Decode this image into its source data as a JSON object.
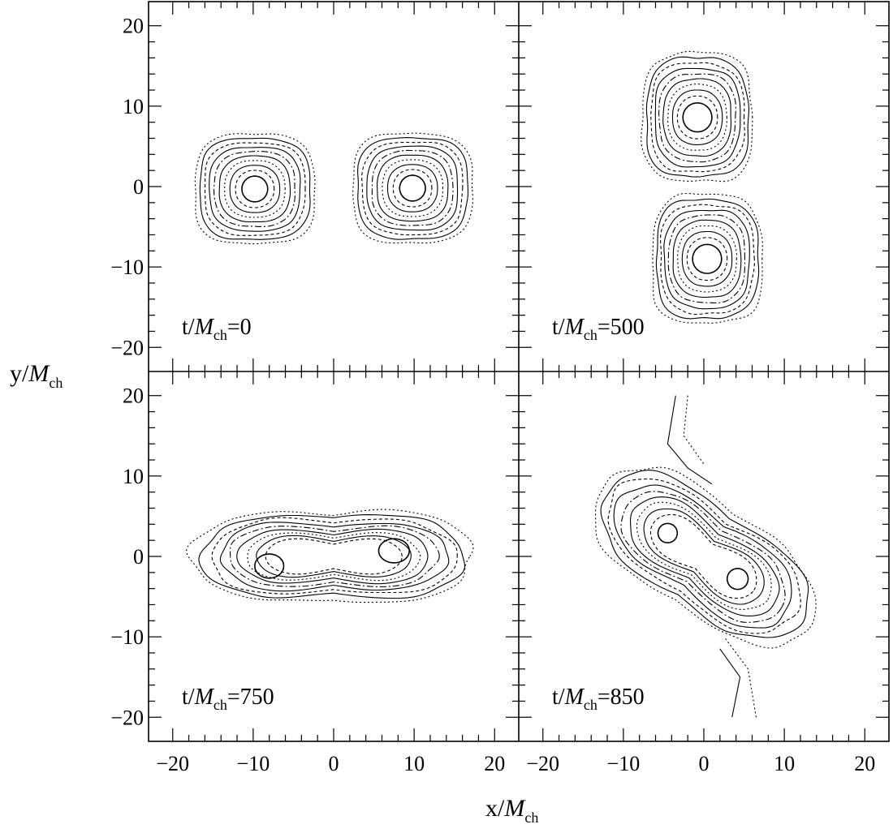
{
  "chart_data": {
    "type": "contour",
    "xlabel": {
      "base": "x/",
      "italic": "M",
      "sub": "ch"
    },
    "ylabel": {
      "base": "y/",
      "italic": "M",
      "sub": "ch"
    },
    "xlim": [
      -23,
      23
    ],
    "ylim": [
      -23,
      23
    ],
    "x_tick_labels": [
      "−20",
      "−10",
      "0",
      "10",
      "20"
    ],
    "y_tick_labels": [
      "20",
      "10",
      "0",
      "−10",
      "−20"
    ],
    "grid": false,
    "panels": [
      {
        "id": "t0",
        "label": {
          "base": "t/",
          "italic": "M",
          "sub": "ch",
          "value": "=0"
        },
        "description": "two separated equal stars",
        "stars": [
          {
            "cx": -9.8,
            "cy": -0.3,
            "core_rx": 1.6,
            "core_ry": 1.6,
            "outer_rx": 7.4,
            "outer_ry": 6.8
          },
          {
            "cx": 9.8,
            "cy": -0.2,
            "core_rx": 1.6,
            "core_ry": 1.6,
            "outer_rx": 7.4,
            "outer_ry": 6.8
          }
        ]
      },
      {
        "id": "t500",
        "label": {
          "base": "t/",
          "italic": "M",
          "sub": "ch",
          "value": "=500"
        },
        "description": "stars tidally elongated, touching",
        "stars": [
          {
            "cx": -0.8,
            "cy": 8.6,
            "core_rx": 1.8,
            "core_ry": 1.8,
            "outer_rx": 6.8,
            "outer_ry": 8.0
          },
          {
            "cx": 0.4,
            "cy": -9.0,
            "core_rx": 1.8,
            "core_ry": 1.8,
            "outer_rx": 6.8,
            "outer_ry": 8.0
          }
        ]
      },
      {
        "id": "t750",
        "label": {
          "base": "t/",
          "italic": "M",
          "sub": "ch",
          "value": "=750"
        },
        "description": "common envelope, dumbbell shape",
        "cores": [
          {
            "cx": -8.0,
            "cy": -1.2,
            "rx": 1.8,
            "ry": 1.5
          },
          {
            "cx": 7.5,
            "cy": 0.7,
            "rx": 1.9,
            "ry": 1.5
          }
        ],
        "envelope_center": [
          0,
          0
        ],
        "envelope_half_extent": [
          17.5,
          7.0
        ]
      },
      {
        "id": "t850",
        "label": {
          "base": "t/",
          "italic": "M",
          "sub": "ch",
          "value": "=850"
        },
        "description": "merger, tilted elongated remnant",
        "cores": [
          {
            "cx": -4.5,
            "cy": 2.9,
            "rx": 1.2,
            "ry": 1.2
          },
          {
            "cx": 4.2,
            "cy": -2.8,
            "rx": 1.3,
            "ry": 1.3
          }
        ],
        "envelope_center": [
          0,
          0
        ],
        "envelope_half_extent": [
          15.5,
          8.5
        ],
        "tilt_deg": -34
      }
    ]
  }
}
